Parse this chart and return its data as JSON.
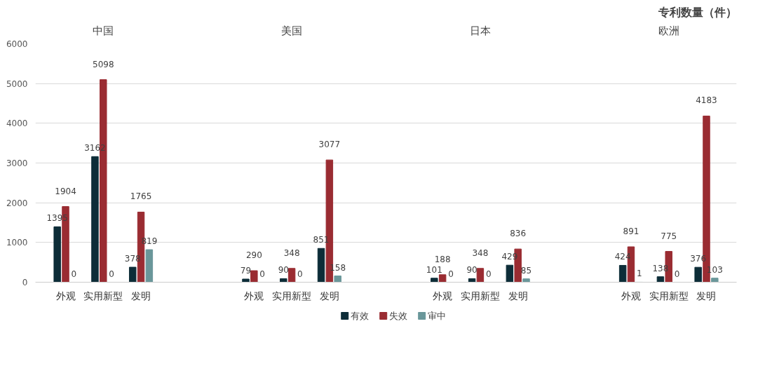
{
  "chart_data": {
    "type": "bar",
    "title": "专利数量（件）",
    "categories": [
      "外观",
      "实用新型",
      "发明",
      "外观",
      "实用新型",
      "发明",
      "外观",
      "实用新型",
      "发明",
      "外观",
      "实用新型",
      "发明"
    ],
    "annotations": [
      "中国",
      "美国",
      "日本",
      "欧洲"
    ],
    "series": [
      {
        "name": "有效",
        "color": "#0d2d38",
        "values": [
          1395,
          3162,
          378,
          79,
          90,
          851,
          101,
          90,
          429,
          424,
          138,
          376
        ]
      },
      {
        "name": "失效",
        "color": "#9a2c32",
        "values": [
          1904,
          5098,
          1765,
          290,
          348,
          3077,
          188,
          348,
          836,
          891,
          775,
          4183
        ]
      },
      {
        "name": "审中",
        "color": "#6a979a",
        "values": [
          0,
          0,
          819,
          0,
          0,
          158,
          0,
          0,
          85,
          1,
          0,
          103
        ]
      }
    ],
    "ylim": [
      0,
      6000
    ],
    "yticks": [
      0,
      1000,
      2000,
      3000,
      4000,
      5000,
      6000
    ],
    "grid": "y",
    "legend": "bottom",
    "data_labels": true
  }
}
